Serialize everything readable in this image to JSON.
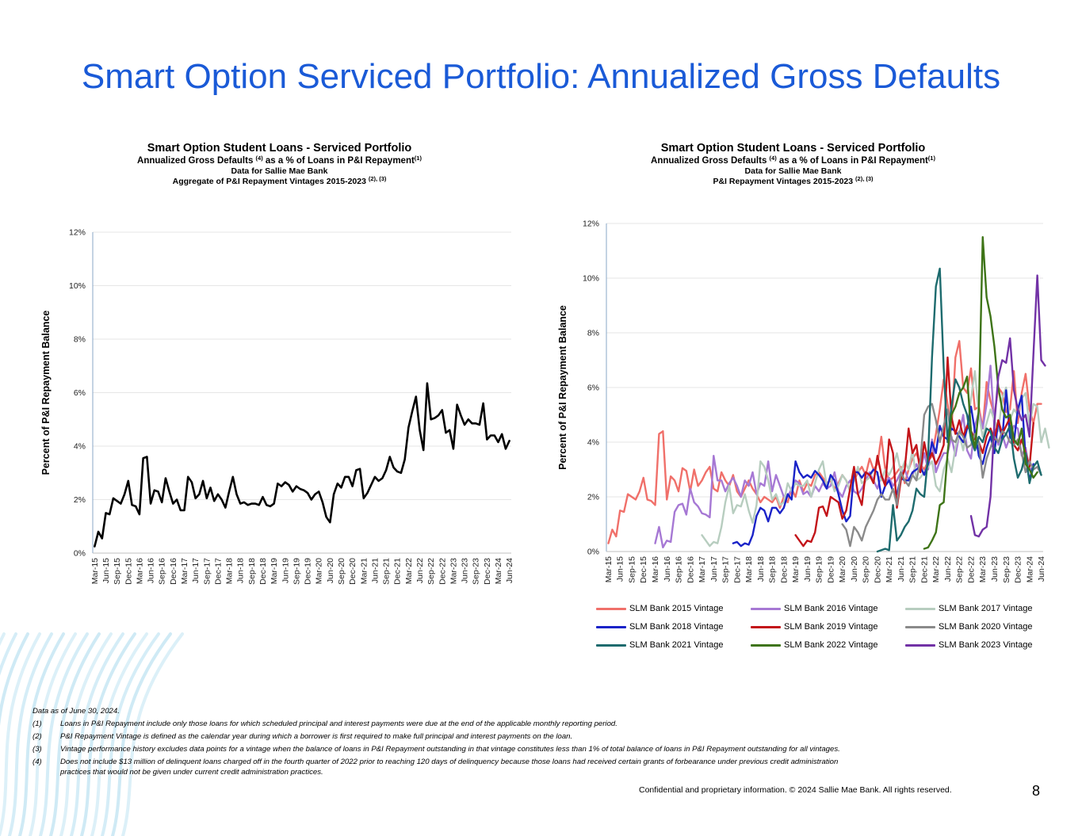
{
  "page": {
    "title": "Smart Option Serviced Portfolio: Annualized Gross Defaults",
    "page_number": "8",
    "confidential": "Confidential and proprietary information. © 2024 Sallie Mae Bank. All rights reserved."
  },
  "left_chart": {
    "title": "Smart Option Student Loans - Serviced Portfolio",
    "subtitle_pre": "Annualized Gross Defaults ",
    "subtitle_sup1": "(4)",
    "subtitle_mid": " as a % of Loans in P&I Repayment",
    "subtitle_sup2": "(1)",
    "line3": "Data for Sallie Mae Bank",
    "line4": "Aggregate of P&I Repayment Vintages 2015-2023 ",
    "line4_sup": "(2), (3)"
  },
  "right_chart": {
    "title": "Smart Option Student Loans - Serviced Portfolio",
    "subtitle_pre": "Annualized Gross Defaults ",
    "subtitle_sup1": "(4)",
    "subtitle_mid": " as a % of Loans in P&I Repayment",
    "subtitle_sup2": "(1)",
    "line3": "Data for Sallie Mae Bank",
    "line4": "P&I Repayment Vintages 2015-2023 ",
    "line4_sup": "(2), (3)"
  },
  "footnotes": {
    "asof": "Data as of June 30, 2024.",
    "items": [
      {
        "mark": "(1)",
        "text": "Loans in P&I Repayment include only those loans for which scheduled principal and interest payments were due at the end of the applicable monthly reporting period."
      },
      {
        "mark": "(2)",
        "text": "P&I Repayment Vintage is defined as the calendar year during which a borrower is first required to make full principal and interest payments on the loan."
      },
      {
        "mark": "(3)",
        "text": "Vintage performance history excludes data points for a vintage when the balance of loans in P&I Repayment outstanding in that vintage constitutes less than 1% of total balance of loans in P&I Repayment outstanding for all vintages."
      },
      {
        "mark": "(4)",
        "text": "Does not include $13 million of delinquent loans charged off in the fourth quarter of 2022 prior to reaching 120 days of delinquency because those loans had received certain grants of forbearance under previous credit administration",
        "cont": "practices that would not be given under current credit administration practices."
      }
    ]
  },
  "chart_data": [
    {
      "type": "line",
      "title": "Smart Option Student Loans - Serviced Portfolio",
      "ylabel": "Percent of P&I Repayment  Balance",
      "xlabel": "",
      "ylim": [
        0,
        12
      ],
      "yticks": [
        "0%",
        "2%",
        "4%",
        "6%",
        "8%",
        "10%",
        "12%"
      ],
      "x_start": "Mar-15",
      "x_count": 112,
      "x_tick_labels": [
        "Mar-15",
        "Jun-15",
        "Sep-15",
        "Dec-15",
        "Mar-16",
        "Jun-16",
        "Sep-16",
        "Dec-16",
        "Mar-17",
        "Jun-17",
        "Sep-17",
        "Dec-17",
        "Mar-18",
        "Jun-18",
        "Sep-18",
        "Dec-18",
        "Mar-19",
        "Jun-19",
        "Sep-19",
        "Dec-19",
        "Mar-20",
        "Jun-20",
        "Sep-20",
        "Dec-20",
        "Mar-21",
        "Jun-21",
        "Sep-21",
        "Dec-21",
        "Mar-22",
        "Jun-22",
        "Sep-22",
        "Dec-22",
        "Mar-23",
        "Jun-23",
        "Sep-23",
        "Dec-23",
        "Mar-24",
        "Jun-24"
      ],
      "grid": true,
      "series": [
        {
          "color": "#000000",
          "values": [
            0.25,
            0.8,
            0.55,
            1.5,
            1.45,
            2.05,
            1.95,
            1.85,
            2.2,
            2.7,
            1.8,
            1.75,
            1.45,
            3.55,
            3.6,
            1.85,
            2.35,
            2.3,
            1.9,
            2.8,
            2.3,
            1.85,
            2.0,
            1.6,
            1.6,
            2.85,
            2.65,
            2.05,
            2.2,
            2.7,
            2.05,
            2.45,
            1.95,
            2.2,
            2.0,
            1.7,
            2.3,
            2.85,
            2.2,
            1.85,
            1.9,
            1.8,
            1.85,
            1.85,
            1.8,
            2.1,
            1.8,
            1.75,
            1.85,
            2.6,
            2.5,
            2.65,
            2.55,
            2.3,
            2.5,
            2.4,
            2.35,
            2.25,
            2.0,
            2.2,
            2.3,
            1.9,
            1.35,
            1.15,
            2.2,
            2.6,
            2.45,
            2.85,
            2.85,
            2.5,
            3.1,
            3.15,
            2.05,
            2.25,
            2.55,
            2.85,
            2.7,
            2.8,
            3.1,
            3.6,
            3.2,
            3.05,
            3.0,
            3.5,
            4.7,
            5.3,
            5.85,
            4.6,
            3.85,
            6.35,
            5.0,
            5.05,
            5.15,
            5.35,
            4.5,
            4.6,
            3.9,
            5.55,
            5.15,
            4.8,
            5.0,
            4.85,
            4.85,
            4.8,
            5.6,
            4.25,
            4.4,
            4.4,
            4.15,
            4.45,
            3.9,
            4.2
          ]
        }
      ]
    },
    {
      "type": "line",
      "title": "Smart Option Student Loans - Serviced Portfolio",
      "ylabel": "Percent of P&I Repayment  Balance",
      "xlabel": "",
      "ylim": [
        0,
        12
      ],
      "yticks": [
        "0%",
        "2%",
        "4%",
        "6%",
        "8%",
        "10%",
        "12%"
      ],
      "x_start": "Mar-15",
      "x_count": 112,
      "x_tick_labels": [
        "Mar-15",
        "Jun-15",
        "Sep-15",
        "Dec-15",
        "Mar-16",
        "Jun-16",
        "Sep-16",
        "Dec-16",
        "Mar-17",
        "Jun-17",
        "Sep-17",
        "Dec-17",
        "Mar-18",
        "Jun-18",
        "Sep-18",
        "Dec-18",
        "Mar-19",
        "Jun-19",
        "Sep-19",
        "Dec-19",
        "Mar-20",
        "Jun-20",
        "Sep-20",
        "Dec-20",
        "Mar-21",
        "Jun-21",
        "Sep-21",
        "Dec-21",
        "Mar-22",
        "Jun-22",
        "Sep-22",
        "Dec-22",
        "Mar-23",
        "Jun-23",
        "Sep-23",
        "Dec-23",
        "Mar-24",
        "Jun-24"
      ],
      "grid": true,
      "legend_position": "bottom",
      "series": [
        {
          "name": "SLM Bank 2015 Vintage",
          "color": "#f0706a",
          "start": 0,
          "values": [
            0.3,
            0.8,
            0.55,
            1.5,
            1.45,
            2.1,
            2.0,
            1.9,
            2.2,
            2.7,
            1.9,
            1.85,
            1.7,
            4.3,
            4.4,
            1.9,
            2.75,
            2.6,
            2.2,
            3.05,
            2.95,
            2.2,
            3.0,
            2.4,
            2.6,
            2.9,
            3.1,
            2.3,
            2.2,
            2.9,
            2.6,
            2.4,
            2.8,
            2.2,
            2.0,
            2.3,
            2.6,
            2.3,
            2.1,
            1.8,
            2.0,
            1.9,
            1.8,
            2.0,
            1.6,
            2.0,
            1.8,
            2.3,
            2.0,
            2.6,
            2.2,
            2.5,
            2.4,
            2.8,
            2.9,
            2.7,
            2.5,
            2.6,
            2.3,
            2.5,
            2.8,
            2.6,
            2.2,
            2.6,
            2.9,
            3.1,
            2.8,
            3.4,
            3.0,
            3.2,
            4.2,
            3.0,
            2.6,
            2.7,
            2.9,
            3.1,
            2.5,
            3.0,
            3.4,
            3.6,
            3.2,
            3.0,
            3.3,
            3.5,
            4.3,
            5.2,
            6.3,
            5.4,
            4.5,
            7.1,
            7.7,
            6.0,
            5.8,
            6.7,
            5.2,
            5.3,
            4.5,
            6.2,
            5.5,
            5.0,
            6.0,
            5.8,
            5.1,
            5.2,
            6.6,
            4.7,
            5.8,
            6.5,
            5.2,
            4.7,
            5.4,
            5.4
          ]
        },
        {
          "name": "SLM Bank 2016 Vintage",
          "color": "#a678d4",
          "start": 12,
          "values": [
            0.3,
            0.9,
            0.15,
            0.4,
            0.35,
            1.45,
            1.7,
            1.75,
            1.35,
            2.3,
            1.8,
            1.65,
            1.4,
            1.35,
            1.25,
            3.5,
            2.6,
            2.6,
            2.2,
            2.5,
            2.7,
            2.4,
            2.0,
            2.6,
            2.4,
            2.9,
            2.1,
            2.5,
            2.4,
            3.3,
            2.2,
            2.8,
            2.4,
            2.0,
            2.0,
            2.3,
            2.6,
            2.5,
            2.1,
            2.2,
            2.0,
            2.4,
            2.2,
            2.5,
            2.3,
            2.4,
            2.9,
            2.2,
            2.0,
            2.4,
            2.6,
            2.2,
            2.1,
            2.3,
            2.6,
            2.9,
            2.6,
            2.3,
            2.8,
            2.5,
            2.7,
            2.4,
            2.6,
            2.9,
            3.0,
            2.6,
            2.8,
            3.2,
            2.9,
            3.6,
            3.0,
            4.1,
            2.9,
            3.3,
            3.6,
            3.6,
            4.2,
            3.5,
            4.3,
            5.0,
            3.7,
            3.4,
            4.6,
            5.1,
            4.5,
            5.4,
            6.8,
            4.5,
            3.9,
            4.3,
            3.8,
            4.2,
            4.6,
            4.5,
            3.5,
            3.8,
            3.0,
            3.1
          ]
        },
        {
          "name": "SLM Bank 2017 Vintage",
          "color": "#b7cdbf",
          "start": 24,
          "values": [
            0.6,
            0.4,
            0.2,
            0.35,
            0.3,
            0.9,
            1.8,
            2.4,
            1.4,
            1.7,
            1.65,
            2.1,
            1.5,
            1.05,
            1.7,
            3.3,
            3.1,
            2.6,
            1.9,
            2.1,
            1.7,
            1.8,
            2.5,
            2.2,
            2.5,
            2.4,
            2.4,
            2.6,
            2.0,
            2.5,
            3.0,
            3.3,
            2.4,
            2.7,
            2.2,
            2.4,
            2.8,
            2.6,
            2.2,
            2.6,
            3.1,
            2.5,
            2.6,
            2.7,
            3.0,
            2.8,
            2.6,
            3.0,
            2.8,
            3.1,
            3.6,
            2.9,
            3.3,
            3.0,
            3.7,
            2.6,
            2.7,
            2.9,
            3.1,
            3.3,
            2.4,
            2.2,
            3.0,
            3.4,
            2.9,
            3.8,
            4.3,
            3.7,
            4.5,
            5.6,
            6.6,
            5.0,
            4.2,
            4.7,
            5.2,
            4.8,
            4.4,
            5.6,
            6.0,
            4.8,
            5.2,
            5.0,
            5.6,
            5.8,
            4.6,
            5.4,
            5.3,
            4.0,
            4.5,
            3.8
          ]
        },
        {
          "name": "SLM Bank 2018 Vintage",
          "color": "#1a23c8",
          "start": 32,
          "values": [
            0.3,
            0.35,
            0.2,
            0.3,
            0.25,
            0.6,
            1.3,
            1.6,
            1.5,
            1.1,
            1.6,
            1.6,
            1.4,
            1.6,
            2.1,
            1.9,
            3.3,
            2.9,
            2.7,
            2.8,
            2.7,
            2.95,
            2.8,
            2.6,
            2.3,
            2.8,
            2.6,
            2.1,
            1.5,
            1.1,
            1.3,
            2.9,
            2.9,
            2.7,
            2.9,
            2.8,
            3.0,
            2.9,
            2.0,
            2.4,
            2.6,
            2.2,
            2.1,
            2.7,
            2.6,
            2.6,
            2.9,
            3.0,
            3.1,
            2.8,
            3.2,
            4.0,
            3.6,
            4.6,
            4.2,
            4.1,
            4.5,
            4.4,
            4.2,
            4.0,
            4.5,
            5.3,
            4.4,
            3.5,
            3.2,
            3.8,
            4.2,
            3.6,
            4.8,
            4.1,
            5.9,
            4.2,
            4.0,
            5.2,
            5.7,
            3.4,
            2.6,
            3.2
          ]
        },
        {
          "name": "SLM Bank 2019 Vintage",
          "color": "#c31419",
          "start": 48,
          "values": [
            0.6,
            0.4,
            0.2,
            0.4,
            0.35,
            0.7,
            1.6,
            1.65,
            1.3,
            2.0,
            1.9,
            1.8,
            1.2,
            1.5,
            2.3,
            3.1,
            2.1,
            1.7,
            2.9,
            2.8,
            2.5,
            3.5,
            2.8,
            2.4,
            4.1,
            3.6,
            1.6,
            2.6,
            3.0,
            4.5,
            3.6,
            3.9,
            2.9,
            4.0,
            3.3,
            3.6,
            3.2,
            3.5,
            3.9,
            7.1,
            4.9,
            4.3,
            4.8,
            4.2,
            4.6,
            4.4,
            4.1,
            4.0,
            3.6,
            4.2,
            4.5,
            4.1,
            4.8,
            4.3,
            4.6,
            4.9,
            3.9,
            3.7,
            4.1,
            3.6,
            3.1,
            4.7
          ]
        },
        {
          "name": "SLM Bank 2020 Vintage",
          "color": "#8a8a8a",
          "start": 60,
          "values": [
            1.0,
            0.8,
            0.2,
            0.9,
            0.7,
            0.4,
            0.9,
            1.2,
            1.5,
            1.9,
            2.1,
            1.9,
            1.9,
            2.3,
            1.7,
            2.9,
            2.6,
            2.4,
            2.8,
            2.6,
            3.3,
            5.0,
            5.3,
            5.4,
            4.8,
            4.0,
            4.6,
            5.2,
            4.1,
            4.0,
            4.4,
            4.2,
            3.8,
            3.9,
            4.3,
            4.0,
            2.7,
            3.4,
            3.8,
            4.2,
            4.0,
            4.4,
            4.3,
            4.0,
            3.9,
            4.1,
            3.6,
            2.9,
            3.3,
            3.0,
            3.1,
            2.8
          ]
        },
        {
          "name": "SLM Bank 2021 Vintage",
          "color": "#1d6b6e",
          "start": 69,
          "values": [
            0.0,
            0.05,
            0.1,
            0.05,
            1.7,
            0.4,
            0.6,
            0.9,
            1.1,
            1.5,
            2.3,
            2.1,
            2.0,
            3.5,
            7.1,
            9.7,
            10.35,
            6.7,
            4.0,
            5.3,
            6.3,
            6.0,
            5.4,
            5.0,
            4.1,
            3.7,
            4.2,
            4.0,
            4.5,
            4.4,
            3.8,
            3.6,
            4.1,
            4.3,
            4.6,
            3.4,
            2.7,
            3.0,
            3.6,
            2.5,
            3.1,
            3.3,
            2.8
          ]
        },
        {
          "name": "SLM Bank 2022 Vintage",
          "color": "#3e7417",
          "start": 81,
          "values": [
            0.1,
            0.15,
            0.4,
            0.7,
            1.7,
            1.8,
            3.6,
            5.0,
            5.3,
            5.8,
            6.0,
            6.4,
            4.4,
            3.8,
            5.2,
            11.5,
            9.3,
            8.6,
            7.5,
            6.0,
            5.2,
            4.9,
            5.0,
            4.1,
            3.9,
            4.5,
            3.2,
            3.0,
            2.7,
            2.9
          ]
        },
        {
          "name": "SLM Bank 2023 Vintage",
          "color": "#7232a6",
          "start": 93,
          "values": [
            1.3,
            0.6,
            0.55,
            0.8,
            0.9,
            2.0,
            4.7,
            6.4,
            7.0,
            6.9,
            7.8,
            5.9,
            5.2,
            4.8,
            5.0,
            4.2,
            7.2,
            10.1,
            7.0,
            6.8
          ]
        }
      ]
    }
  ]
}
